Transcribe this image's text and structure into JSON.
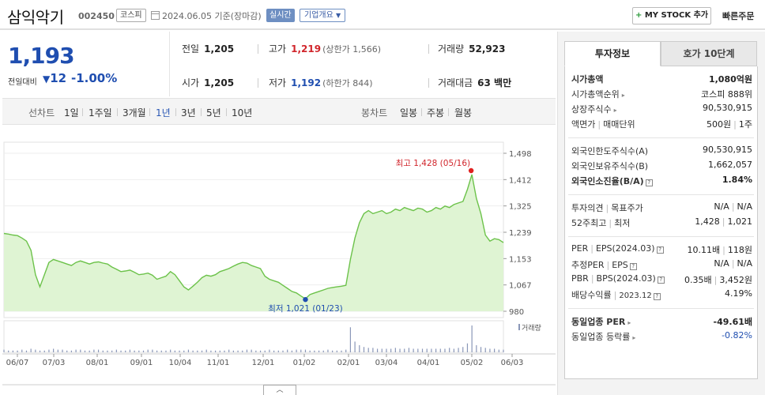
{
  "header": {
    "company_name": "삼익악기",
    "stock_code": "002450",
    "market": "코스피",
    "date_text": "2024.06.05  기준(장마감)",
    "realtime_label": "실시간",
    "overview_label": "기업개요",
    "mystock_label": "MY STOCK 추가",
    "mystock_plus": "+",
    "quick_order_label": "빠른주문"
  },
  "price": {
    "current": "1,193",
    "change_label": "전일대비",
    "change_arrow": "▼",
    "change_value": "12",
    "change_pct": "-1.00%"
  },
  "stats": {
    "prev_close_label": "전일",
    "prev_close": "1,205",
    "high_label": "고가",
    "high": "1,219",
    "upper_limit": "(상한가 1,566)",
    "volume_label": "거래량",
    "volume": "52,923",
    "open_label": "시가",
    "open": "1,205",
    "low_label": "저가",
    "low": "1,192",
    "lower_limit": "(하한가 844)",
    "amount_label": "거래대금",
    "amount": "63 백만"
  },
  "toolbar": {
    "line_chart_label": "선차트",
    "periods": [
      "1일",
      "1주일",
      "3개월",
      "1년",
      "3년",
      "5년",
      "10년"
    ],
    "active_period": "1년",
    "candle_label": "봉차트",
    "candle_periods": [
      "일봉",
      "주봉",
      "월봉"
    ]
  },
  "chart_data": {
    "type": "area",
    "y_ticks": [
      "1,498",
      "1,412",
      "1,325",
      "1,239",
      "1,153",
      "1,067",
      "980"
    ],
    "ylim": [
      980,
      1498
    ],
    "x_labels": [
      "06/07",
      "07/03",
      "08/01",
      "09/01",
      "10/04",
      "11/01",
      "12/01",
      "01/02",
      "02/01",
      "03/04",
      "04/01",
      "05/02",
      "06/03"
    ],
    "high_annotation": "최고 1,428 (05/16)",
    "low_annotation": "최저 1,021 (01/23)",
    "volume_label": "거래량",
    "values": [
      1235,
      1233,
      1230,
      1228,
      1220,
      1210,
      1180,
      1100,
      1060,
      1100,
      1140,
      1150,
      1145,
      1140,
      1135,
      1130,
      1140,
      1145,
      1140,
      1135,
      1140,
      1142,
      1138,
      1135,
      1125,
      1118,
      1110,
      1112,
      1115,
      1108,
      1100,
      1102,
      1105,
      1098,
      1085,
      1090,
      1095,
      1110,
      1100,
      1080,
      1060,
      1050,
      1062,
      1075,
      1090,
      1098,
      1095,
      1100,
      1110,
      1115,
      1120,
      1128,
      1135,
      1140,
      1138,
      1130,
      1125,
      1120,
      1095,
      1085,
      1080,
      1075,
      1065,
      1055,
      1045,
      1040,
      1030,
      1021,
      1035,
      1040,
      1045,
      1050,
      1055,
      1058,
      1060,
      1062,
      1065,
      1150,
      1220,
      1270,
      1300,
      1310,
      1300,
      1305,
      1310,
      1300,
      1305,
      1315,
      1310,
      1320,
      1315,
      1310,
      1318,
      1315,
      1305,
      1310,
      1320,
      1315,
      1325,
      1320,
      1330,
      1335,
      1340,
      1380,
      1428,
      1350,
      1300,
      1230,
      1210,
      1218,
      1215,
      1205
    ],
    "volumes": [
      3,
      2,
      2,
      2,
      3,
      2,
      4,
      3,
      2,
      2,
      3,
      4,
      3,
      3,
      2,
      2,
      3,
      3,
      2,
      2,
      3,
      3,
      2,
      2,
      2,
      3,
      2,
      2,
      3,
      2,
      2,
      2,
      3,
      3,
      2,
      2,
      2,
      3,
      2,
      2,
      2,
      3,
      2,
      2,
      2,
      3,
      2,
      2,
      2,
      2,
      3,
      2,
      2,
      2,
      3,
      3,
      2,
      2,
      2,
      3,
      2,
      2,
      2,
      3,
      2,
      3,
      3,
      3,
      2,
      2,
      2,
      2,
      3,
      2,
      2,
      2,
      3,
      28,
      12,
      8,
      6,
      5,
      5,
      4,
      4,
      4,
      4,
      5,
      4,
      4,
      5,
      4,
      4,
      4,
      4,
      4,
      4,
      4,
      4,
      5,
      4,
      5,
      6,
      10,
      30,
      8,
      6,
      5,
      4,
      4,
      3,
      3
    ]
  },
  "panel": {
    "tab_active": "투자정보",
    "tab_inactive": "호가 10단계",
    "market_cap_label": "시가총액",
    "market_cap": "1,080억원",
    "cap_rank_label": "시가총액순위",
    "cap_rank": "코스피 888위",
    "shares_label": "상장주식수",
    "shares": "90,530,915",
    "par_label": "액면가",
    "unit_label": "매매단위",
    "par": "500원",
    "unit": "1주",
    "foreign_limit_label": "외국인한도주식수(A)",
    "foreign_limit": "90,530,915",
    "foreign_hold_label": "외국인보유주식수(B)",
    "foreign_hold": "1,662,057",
    "foreign_ratio_label": "외국인소진율(B/A)",
    "foreign_ratio": "1.84%",
    "opinion_label": "투자의견",
    "target_label": "목표주가",
    "opinion": "N/A",
    "target": "N/A",
    "w52_high_label": "52주최고",
    "w52_low_label": "최저",
    "w52_high": "1,428",
    "w52_low": "1,021",
    "per_label": "PER",
    "eps_label": "EPS(2024.03)",
    "per": "10.11배",
    "eps": "118원",
    "est_per_label": "추정PER",
    "est_eps_label": "EPS",
    "est_per": "N/A",
    "est_eps": "N/A",
    "pbr_label": "PBR",
    "bps_label": "BPS(2024.03)",
    "pbr": "0.35배",
    "bps": "3,452원",
    "div_label": "배당수익률",
    "div_date": "2023.12",
    "div": "4.19%",
    "ind_per_label": "동일업종 PER",
    "ind_per": "-49.61배",
    "ind_rate_label": "동일업종 등락률",
    "ind_rate": "-0.82%"
  },
  "colors": {
    "up": "#d1262c",
    "down": "#1f4eb0",
    "chart_line": "#6cc24a",
    "chart_fill": "#dff4d3"
  }
}
